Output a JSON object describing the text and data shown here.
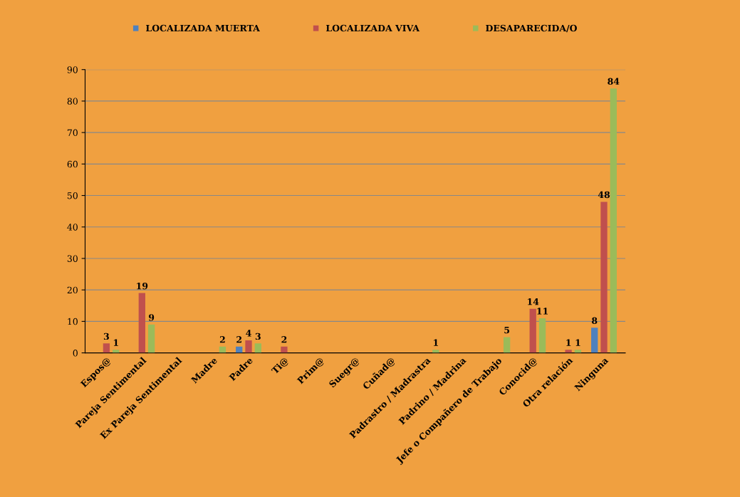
{
  "chart_data": {
    "type": "bar",
    "categories": [
      "Espos@",
      "Pareja Sentimental",
      "Ex Pareja Sentimental",
      "Madre",
      "Padre",
      "Ti@",
      "Prim@",
      "Suegr@",
      "Cuñad@",
      "Padrastro / Madrastra",
      "Padrino / Madrina",
      "Jefe o Compañero de Trabajo",
      "Conocid@",
      "Otra relación",
      "Ninguna"
    ],
    "series": [
      {
        "name": "LOCALIZADA MUERTA",
        "color": "#4f81bd",
        "values": [
          0,
          0,
          0,
          0,
          2,
          0,
          0,
          0,
          0,
          0,
          0,
          0,
          0,
          0,
          8
        ],
        "value_labels": [
          null,
          null,
          null,
          null,
          "2",
          null,
          null,
          null,
          null,
          null,
          null,
          null,
          null,
          null,
          "8"
        ]
      },
      {
        "name": "LOCALIZADA VIVA",
        "color": "#c0504d",
        "values": [
          3,
          19,
          0,
          0,
          4,
          2,
          0,
          0,
          0,
          0,
          0,
          0,
          14,
          1,
          48
        ],
        "value_labels": [
          "3",
          "19",
          null,
          null,
          "4",
          "2",
          null,
          null,
          null,
          null,
          null,
          null,
          "14",
          "1",
          "48"
        ]
      },
      {
        "name": "DESAPARECIDA/O",
        "color": "#9bbb59",
        "values": [
          1,
          9,
          0,
          2,
          3,
          0,
          0,
          0,
          0,
          1,
          0,
          5,
          11,
          1,
          84
        ],
        "value_labels": [
          "1",
          "9",
          null,
          "2",
          "3",
          null,
          null,
          null,
          null,
          "1",
          null,
          "5",
          "11",
          "1",
          "84"
        ]
      }
    ],
    "ylim": [
      0,
      90
    ],
    "yticks": [
      0,
      10,
      20,
      30,
      40,
      50,
      60,
      70,
      80,
      90
    ],
    "grid": "y",
    "legend": "top"
  }
}
